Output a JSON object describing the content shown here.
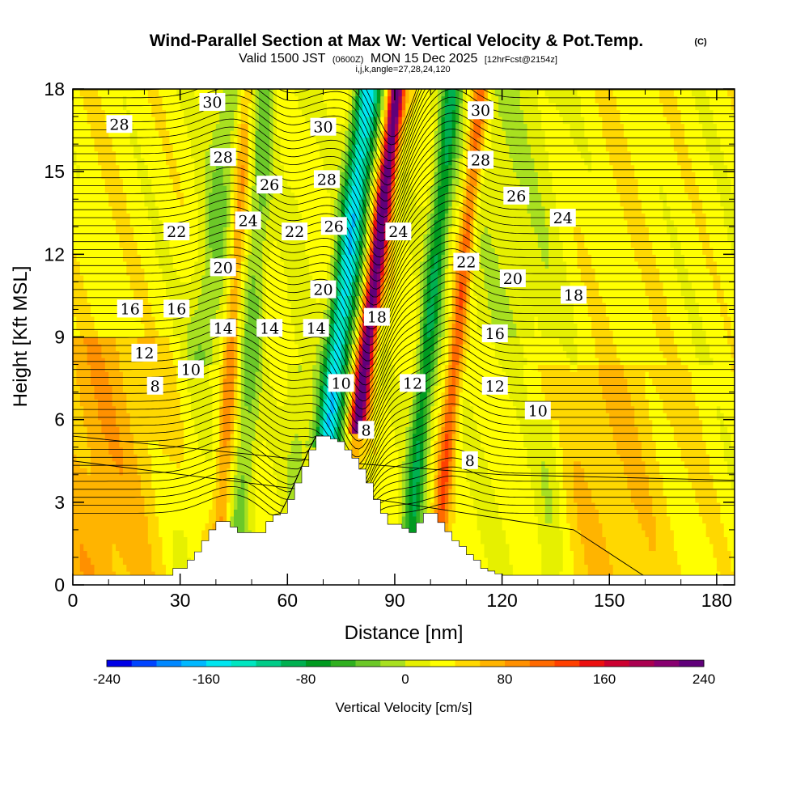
{
  "title": {
    "main": "Wind-Parallel Section at Max W: Vertical Velocity & Pot.Temp.",
    "copyright": "(C)",
    "valid_prefix": "Valid 1500 JST",
    "valid_utc": "(0600Z)",
    "valid_date": "MON 15 Dec 2025",
    "forecast": "[12hrFcst@2154z]",
    "ijk": "i,j,k,angle=27,28,24,120"
  },
  "colors": {
    "terrain": "#ffffff",
    "frame": "#000000",
    "contour": "#000000"
  },
  "chart_data": {
    "type": "heatmap",
    "xlabel": "Distance [nm]",
    "ylabel": "Height [Kft MSL]",
    "xlim": [
      0,
      185
    ],
    "ylim": [
      0,
      18
    ],
    "xticks": [
      "0",
      "30",
      "60",
      "90",
      "120",
      "150",
      "180"
    ],
    "yticks": [
      "0",
      "3",
      "6",
      "9",
      "12",
      "15",
      "18"
    ],
    "fill_variable": "Vertical Velocity [cm/s]",
    "colorbar": {
      "label": "Vertical Velocity [cm/s]",
      "tick_labels": [
        "-240",
        "-160",
        "-80",
        "0",
        "80",
        "160",
        "240"
      ],
      "levels": [
        -240,
        -220,
        -200,
        -180,
        -160,
        -140,
        -120,
        -100,
        -80,
        -60,
        -40,
        -20,
        0,
        20,
        40,
        60,
        80,
        100,
        120,
        140,
        160,
        180,
        200,
        220,
        240
      ],
      "colors": [
        "#0000e6",
        "#0044ff",
        "#0088ff",
        "#00b8ff",
        "#00e6f0",
        "#00e6c0",
        "#00cc88",
        "#00b050",
        "#009a20",
        "#30b020",
        "#6cc828",
        "#a8e020",
        "#e6f000",
        "#ffff00",
        "#ffd800",
        "#ffb400",
        "#ff9000",
        "#ff6a00",
        "#ff4000",
        "#ec1010",
        "#cc0030",
        "#aa0050",
        "#880070",
        "#60007a"
      ]
    },
    "w_features": [
      {
        "x": [
          64,
          80
        ],
        "z": [
          5,
          18
        ],
        "w": -170,
        "type": "downdraft"
      },
      {
        "x": [
          79,
          85
        ],
        "z": [
          5.5,
          18
        ],
        "w": 220,
        "type": "updraft"
      },
      {
        "x": [
          96,
          104
        ],
        "z": [
          2.5,
          18
        ],
        "w": -100,
        "type": "downdraft"
      },
      {
        "x": [
          104,
          110
        ],
        "z": [
          3,
          18
        ],
        "w": 90,
        "type": "updraft"
      },
      {
        "x": [
          41,
          47
        ],
        "z": [
          1.5,
          18
        ],
        "w": 60,
        "type": "updraft"
      }
    ],
    "terrain_profile": {
      "x": [
        26,
        30,
        32,
        34,
        36,
        38,
        40,
        42,
        46,
        48,
        52,
        55,
        58,
        60,
        62,
        64,
        66,
        68,
        70,
        74,
        76,
        78,
        80,
        82,
        84,
        86,
        88,
        90,
        94,
        98,
        100,
        106,
        108,
        110,
        112,
        114,
        116,
        118,
        120,
        122,
        125
      ],
      "height_kft": [
        0.6,
        0.6,
        0.9,
        1.2,
        1.6,
        2.0,
        2.3,
        2.3,
        1.9,
        1.9,
        1.9,
        2.5,
        2.6,
        3.1,
        3.7,
        4.3,
        4.9,
        5.4,
        5.4,
        5.2,
        4.9,
        4.6,
        4.2,
        3.7,
        3.1,
        2.6,
        2.2,
        2.2,
        1.9,
        2.6,
        2.6,
        1.6,
        1.4,
        1.1,
        0.9,
        0.6,
        0.5,
        0.4,
        0.3,
        0.3,
        0.3
      ]
    },
    "theta_contour_labels": [
      {
        "text": "28",
        "x": 13,
        "z": 16.7
      },
      {
        "text": "30",
        "x": 39,
        "z": 17.5
      },
      {
        "text": "28",
        "x": 42,
        "z": 15.5
      },
      {
        "text": "26",
        "x": 55,
        "z": 14.5
      },
      {
        "text": "24",
        "x": 49,
        "z": 13.2
      },
      {
        "text": "22",
        "x": 29,
        "z": 12.8
      },
      {
        "text": "22",
        "x": 62,
        "z": 12.8
      },
      {
        "text": "20",
        "x": 42,
        "z": 11.5
      },
      {
        "text": "16",
        "x": 16,
        "z": 10.0
      },
      {
        "text": "16",
        "x": 29,
        "z": 10.0
      },
      {
        "text": "14",
        "x": 42,
        "z": 9.3
      },
      {
        "text": "14",
        "x": 55,
        "z": 9.3
      },
      {
        "text": "14",
        "x": 68,
        "z": 9.3
      },
      {
        "text": "12",
        "x": 20,
        "z": 8.4
      },
      {
        "text": "10",
        "x": 33,
        "z": 7.8
      },
      {
        "text": "8",
        "x": 23,
        "z": 7.2
      },
      {
        "text": "30",
        "x": 70,
        "z": 16.6
      },
      {
        "text": "28",
        "x": 71,
        "z": 14.7
      },
      {
        "text": "26",
        "x": 73,
        "z": 13.0
      },
      {
        "text": "20",
        "x": 70,
        "z": 10.7
      },
      {
        "text": "10",
        "x": 75,
        "z": 7.3
      },
      {
        "text": "8",
        "x": 82,
        "z": 5.6
      },
      {
        "text": "18",
        "x": 85,
        "z": 9.7
      },
      {
        "text": "24",
        "x": 91,
        "z": 12.8
      },
      {
        "text": "12",
        "x": 95,
        "z": 7.3
      },
      {
        "text": "30",
        "x": 114,
        "z": 17.2
      },
      {
        "text": "28",
        "x": 114,
        "z": 15.4
      },
      {
        "text": "26",
        "x": 124,
        "z": 14.1
      },
      {
        "text": "24",
        "x": 137,
        "z": 13.3
      },
      {
        "text": "22",
        "x": 110,
        "z": 11.7
      },
      {
        "text": "20",
        "x": 123,
        "z": 11.1
      },
      {
        "text": "18",
        "x": 140,
        "z": 10.5
      },
      {
        "text": "16",
        "x": 118,
        "z": 9.1
      },
      {
        "text": "12",
        "x": 118,
        "z": 7.2
      },
      {
        "text": "10",
        "x": 130,
        "z": 6.3
      },
      {
        "text": "8",
        "x": 111,
        "z": 4.5
      }
    ]
  }
}
